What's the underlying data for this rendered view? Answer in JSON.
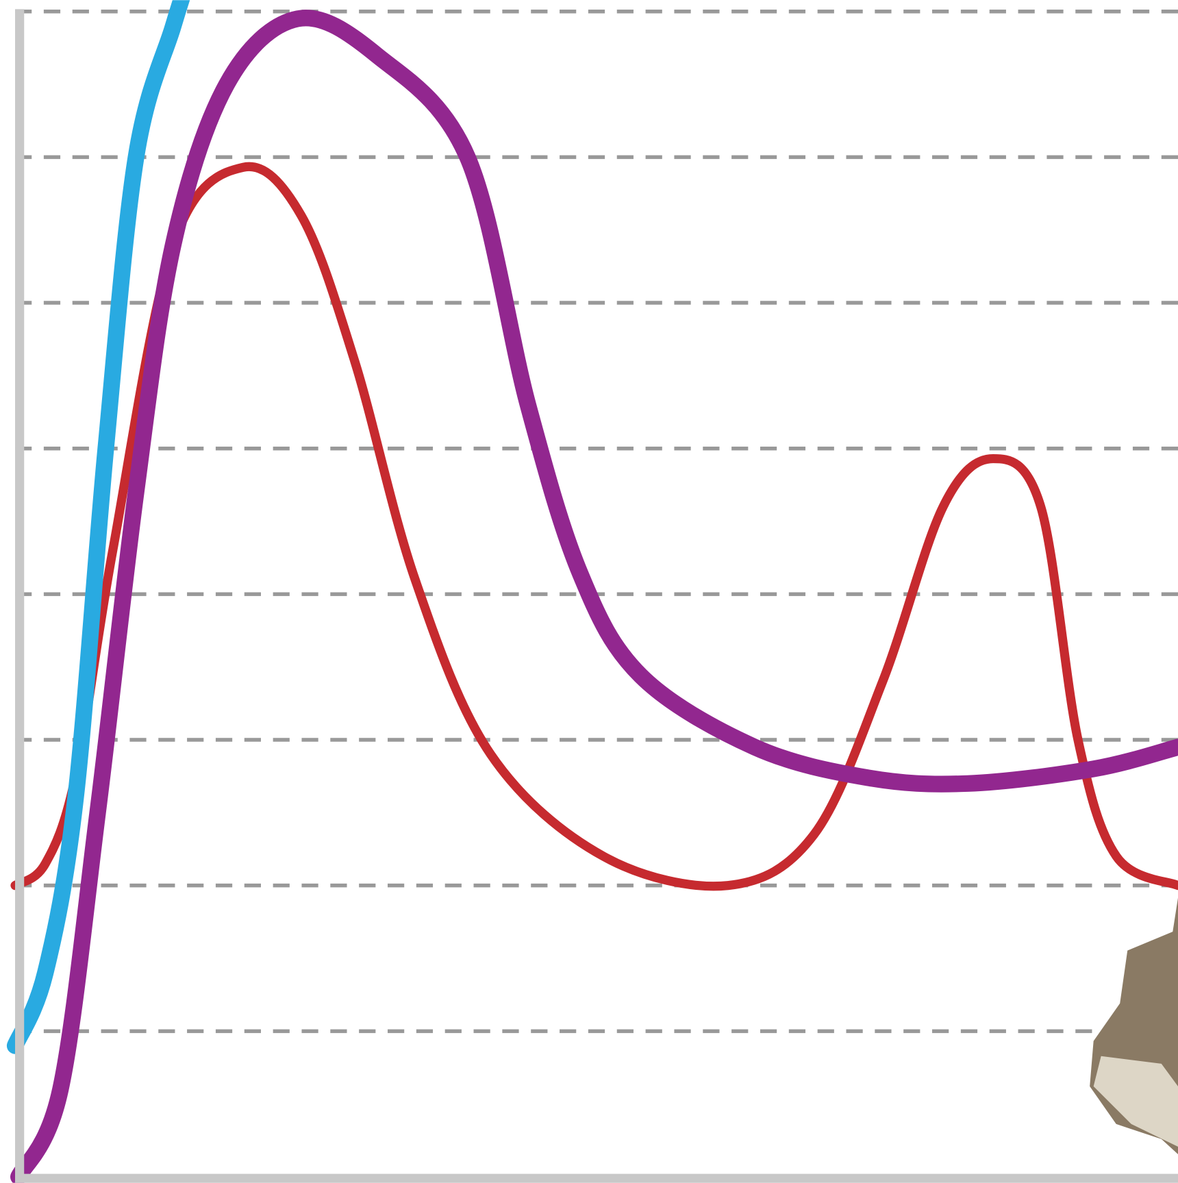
{
  "chart_data": {
    "type": "line",
    "xlim": [
      0,
      100
    ],
    "ylim": [
      0,
      8
    ],
    "yticks": [
      1,
      2,
      3,
      4,
      5,
      6,
      7,
      8
    ],
    "grid": true,
    "series": [
      {
        "color": "#c62a2f",
        "width": 12,
        "x": [
          0,
          2.6,
          5.2,
          8.4,
          13.6,
          19.6,
          24.6,
          29.2,
          34.4,
          40.9,
          50.6,
          61.3,
          68.7,
          74.6,
          79.8,
          84.1,
          88.2,
          91.4,
          94.7,
          100
        ],
        "values": [
          2.0,
          2.15,
          2.75,
          4.3,
          6.4,
          6.93,
          6.6,
          5.6,
          4.1,
          2.9,
          2.2,
          2.0,
          2.35,
          3.4,
          4.6,
          4.93,
          4.6,
          3.0,
          2.2,
          2.0
        ]
      },
      {
        "color": "#29aae1",
        "width": 22,
        "x": [
          0,
          2.6,
          5.2,
          7.8,
          10.4,
          13.6,
          15.2
        ],
        "values": [
          0.9,
          1.4,
          2.6,
          5.0,
          7.0,
          7.9,
          8.3
        ]
      },
      {
        "color": "#92278f",
        "width": 22,
        "x": [
          0.3,
          3.9,
          7.1,
          10.4,
          13.6,
          18.2,
          24.3,
          31.1,
          38.9,
          44.1,
          48.6,
          53.8,
          63.6,
          73.3,
          81.9,
          92.7,
          100
        ],
        "values": [
          0,
          0.6,
          2.5,
          4.7,
          6.4,
          7.5,
          7.95,
          7.7,
          7.0,
          5.3,
          4.14,
          3.44,
          2.95,
          2.74,
          2.7,
          2.8,
          2.95
        ]
      }
    ]
  }
}
